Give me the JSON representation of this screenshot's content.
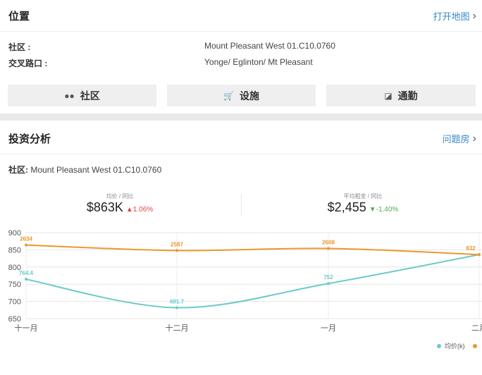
{
  "location": {
    "title": "位置",
    "map_link": "打开地图",
    "rows": [
      {
        "key": "社区 :",
        "value": "Mount Pleasant West 01.C10.0760"
      },
      {
        "key": "交叉路口 :",
        "value": "Yonge/ Eglinton/ Mt Pleasant"
      }
    ],
    "tabs": [
      {
        "label": "社区",
        "icon": "users-icon"
      },
      {
        "label": "设施",
        "icon": "cart-icon"
      },
      {
        "label": "通勤",
        "icon": "subway-icon"
      }
    ]
  },
  "investment": {
    "title": "投资分析",
    "link": "问题房",
    "community_label": "社区:",
    "community_value": "Mount Pleasant West 01.C10.0760",
    "stats": [
      {
        "label": "均价 / 同比",
        "value": "$863K",
        "change": "1.06%",
        "direction": "up"
      },
      {
        "label": "平均租金 / 同比",
        "value": "$2,455",
        "change": "-1.40%",
        "direction": "down"
      }
    ],
    "legend": [
      {
        "label": "均价(k)",
        "color": "#6cc9c9"
      }
    ]
  },
  "chart_data": {
    "type": "line",
    "categories": [
      "十一月",
      "十二月",
      "一月",
      "二月"
    ],
    "ylim": [
      650,
      900
    ],
    "yticks": [
      650,
      700,
      750,
      800,
      850,
      900
    ],
    "series": [
      {
        "name": "均价(k)",
        "color": "#6cc9c9",
        "values": [
          764.4,
          681.7,
          752,
          836
        ],
        "labels": [
          "764.4",
          "681.7",
          "752",
          ""
        ]
      },
      {
        "color": "#e89a2c",
        "values": [
          864,
          848,
          854,
          836
        ],
        "labels": [
          "2634",
          "2587",
          "2608",
          "832"
        ]
      }
    ]
  },
  "colors": {
    "link": "#3a87c8",
    "up": "#e0454c",
    "down": "#4caf50",
    "band": "#e9e9e9"
  }
}
